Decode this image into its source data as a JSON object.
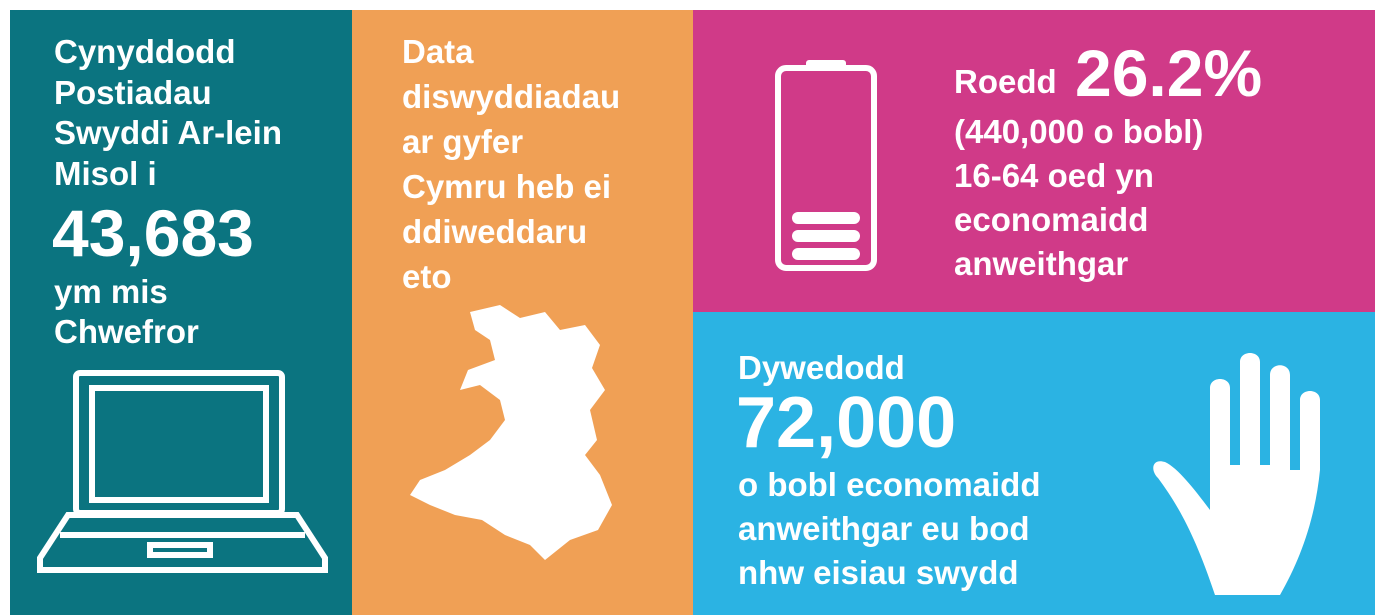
{
  "panels": [
    {
      "lines_before": [
        "Cynyddodd",
        "Postiadau",
        "Swyddi Ar-lein",
        "Misol i"
      ],
      "highlight": "43,683",
      "lines_after": [
        "ym mis",
        "Chwefror"
      ]
    },
    {
      "lines": [
        "Data",
        "diswyddiadau",
        "ar gyfer",
        "Cymru heb ei",
        "ddiweddaru",
        "eto"
      ]
    },
    {
      "lead": "Roedd",
      "highlight": "26.2%",
      "lines_after": [
        "(440,000 o bobl)",
        "16-64 oed yn",
        "economaidd",
        "anweithgar"
      ]
    },
    {
      "lead": "Dywedodd",
      "highlight": "72,000",
      "lines_after": [
        "o bobl economaidd",
        "anweithgar eu bod",
        "nhw eisiau swydd"
      ]
    }
  ]
}
